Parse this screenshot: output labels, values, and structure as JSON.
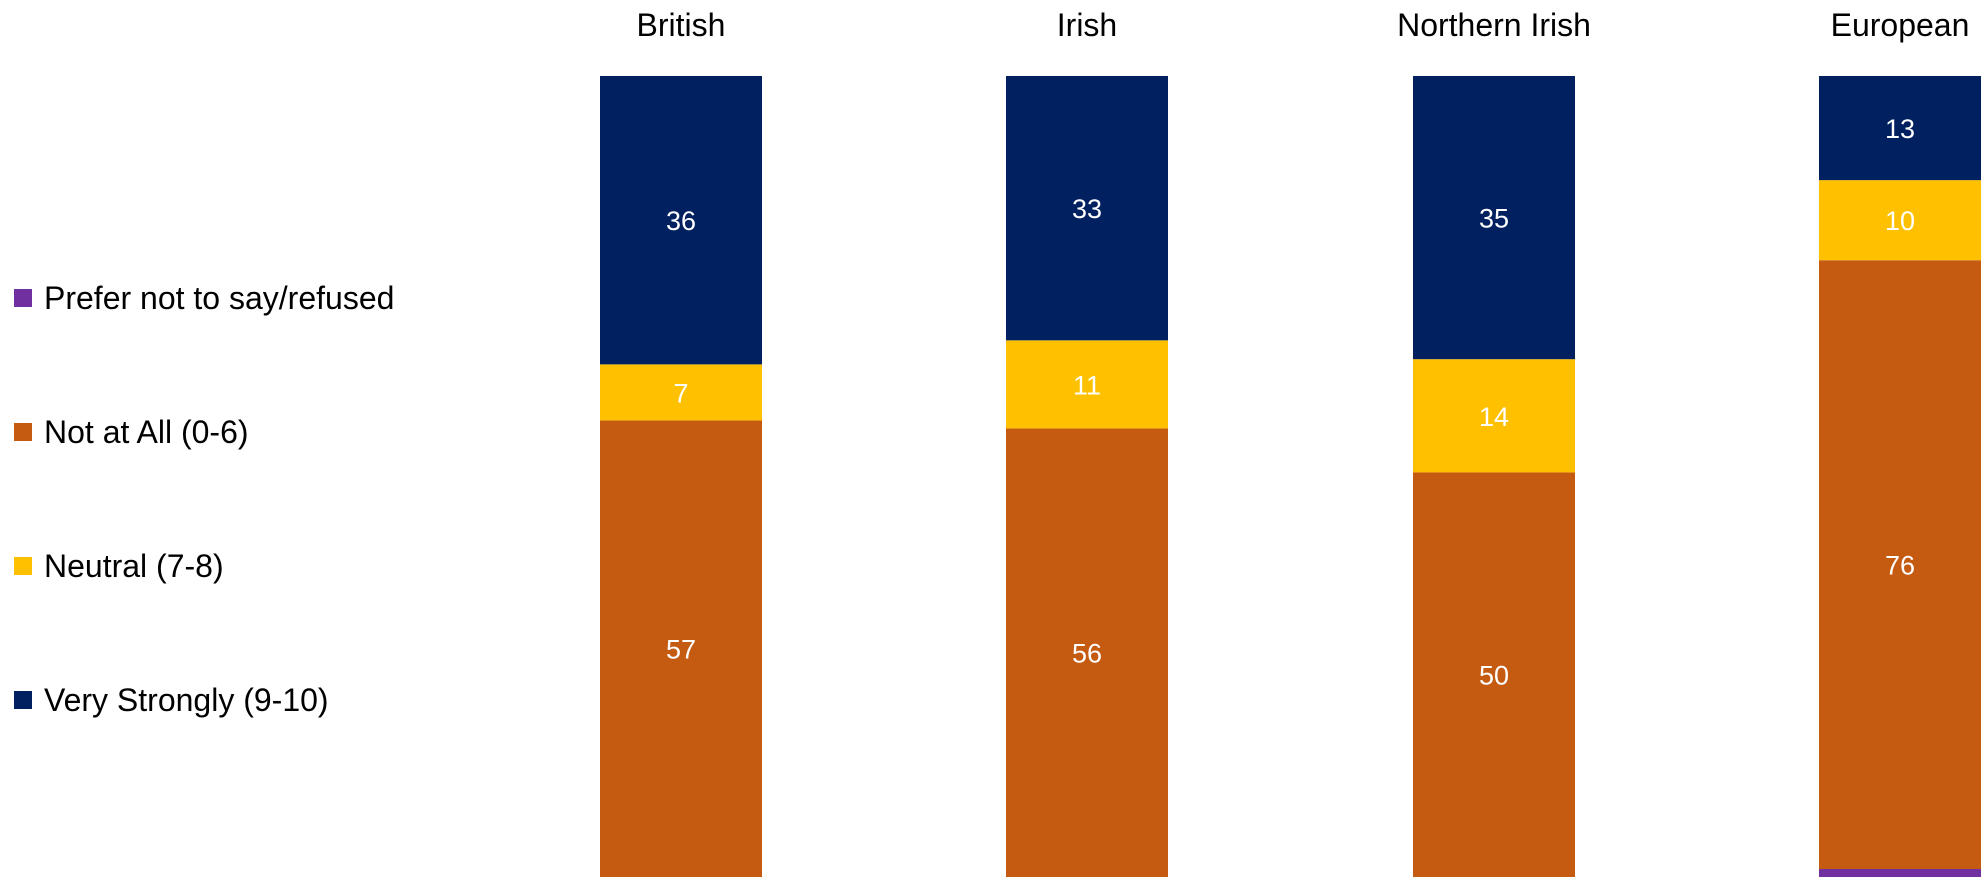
{
  "chart_data": {
    "type": "bar",
    "stacked": true,
    "percent_stacked": true,
    "orientation": "vertical",
    "categories": [
      "British",
      "Irish",
      "Northern Irish",
      "European"
    ],
    "series": [
      {
        "name": "Prefer not to say/refused",
        "color": "#7030A0",
        "values": [
          0,
          0,
          0,
          1
        ]
      },
      {
        "name": "Not at All (0-6)",
        "color": "#C55A11",
        "values": [
          57,
          56,
          50,
          76
        ]
      },
      {
        "name": "Neutral (7-8)",
        "color": "#FFC000",
        "values": [
          7,
          11,
          14,
          10
        ]
      },
      {
        "name": "Very Strongly (9-10)",
        "color": "#002060",
        "values": [
          36,
          33,
          35,
          13
        ]
      }
    ],
    "legend_position": "left",
    "legend_order": [
      "Prefer not to say/refused",
      "Not at All (0-6)",
      "Neutral (7-8)",
      "Very Strongly (9-10)"
    ],
    "ylim": [
      0,
      100
    ],
    "grid": false,
    "title": "",
    "xlabel": "",
    "ylabel": ""
  }
}
